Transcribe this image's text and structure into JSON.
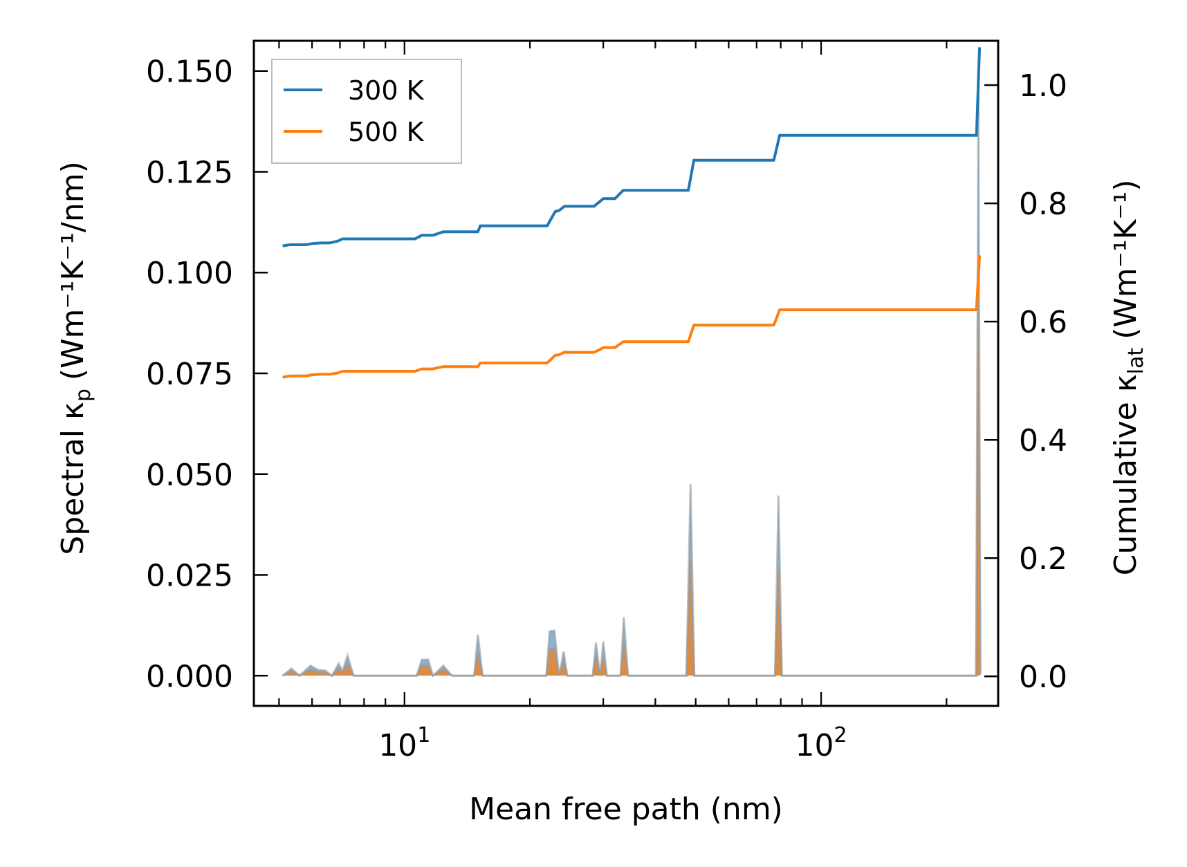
{
  "chart_data": {
    "type": "line",
    "title": "",
    "xlabel": "Mean free path (nm)",
    "ylabel_left": {
      "base": "Spectral κ",
      "sub": "p",
      "unit": "(Wm⁻¹K⁻¹/nm)"
    },
    "ylabel_right": {
      "base": "Cumulative κ",
      "sub": "lat",
      "unit": "(Wm⁻¹K⁻¹)"
    },
    "x_scale": "log",
    "xlim": [
      4.35,
      266
    ],
    "x_ticks": [
      {
        "value": 10,
        "label": "10",
        "exp": "1"
      },
      {
        "value": 100,
        "label": "10",
        "exp": "2"
      }
    ],
    "ylim_left": [
      -0.0075,
      0.1575
    ],
    "ylim_right": [
      -0.05,
      1.075
    ],
    "y_ticks_left": [
      {
        "value": 0.0,
        "label": "0.000"
      },
      {
        "value": 0.025,
        "label": "0.025"
      },
      {
        "value": 0.05,
        "label": "0.050"
      },
      {
        "value": 0.075,
        "label": "0.075"
      },
      {
        "value": 0.1,
        "label": "0.100"
      },
      {
        "value": 0.125,
        "label": "0.125"
      },
      {
        "value": 0.15,
        "label": "0.150"
      }
    ],
    "y_ticks_right": [
      {
        "value": 0.0,
        "label": "0.0"
      },
      {
        "value": 0.2,
        "label": "0.2"
      },
      {
        "value": 0.4,
        "label": "0.4"
      },
      {
        "value": 0.6,
        "label": "0.6"
      },
      {
        "value": 0.8,
        "label": "0.8"
      },
      {
        "value": 1.0,
        "label": "1.0"
      }
    ],
    "legend": {
      "position": "upper-left",
      "entries": [
        {
          "name": "300 K",
          "color": "#1f77b4"
        },
        {
          "name": "500 K",
          "color": "#ff7f0e"
        }
      ]
    },
    "cumulative_series": [
      {
        "name": "300 K",
        "axis": "right",
        "color": "#1f77b4",
        "points": [
          [
            5.1,
            0.728
          ],
          [
            5.3,
            0.73
          ],
          [
            5.8,
            0.73
          ],
          [
            6.0,
            0.732
          ],
          [
            6.3,
            0.733
          ],
          [
            6.6,
            0.733
          ],
          [
            6.9,
            0.736
          ],
          [
            7.1,
            0.74
          ],
          [
            10.6,
            0.74
          ],
          [
            11.0,
            0.746
          ],
          [
            11.7,
            0.746
          ],
          [
            12.4,
            0.752
          ],
          [
            15.0,
            0.752
          ],
          [
            15.2,
            0.762
          ],
          [
            22.0,
            0.762
          ],
          [
            23.0,
            0.786
          ],
          [
            23.5,
            0.788
          ],
          [
            24.2,
            0.795
          ],
          [
            28.5,
            0.795
          ],
          [
            29.3,
            0.802
          ],
          [
            30.0,
            0.808
          ],
          [
            32.0,
            0.808
          ],
          [
            33.5,
            0.822
          ],
          [
            48.0,
            0.822
          ],
          [
            49.5,
            0.873
          ],
          [
            77.0,
            0.873
          ],
          [
            79.5,
            0.915
          ],
          [
            236,
            0.915
          ],
          [
            240,
            1.064
          ]
        ]
      },
      {
        "name": "500 K",
        "axis": "right",
        "color": "#ff7f0e",
        "points": [
          [
            5.1,
            0.506
          ],
          [
            5.3,
            0.508
          ],
          [
            5.8,
            0.508
          ],
          [
            6.0,
            0.51
          ],
          [
            6.3,
            0.511
          ],
          [
            6.6,
            0.511
          ],
          [
            6.9,
            0.513
          ],
          [
            7.1,
            0.516
          ],
          [
            10.6,
            0.516
          ],
          [
            11.0,
            0.52
          ],
          [
            11.7,
            0.52
          ],
          [
            12.4,
            0.524
          ],
          [
            15.0,
            0.524
          ],
          [
            15.2,
            0.53
          ],
          [
            22.0,
            0.53
          ],
          [
            23.0,
            0.543
          ],
          [
            23.5,
            0.544
          ],
          [
            24.2,
            0.548
          ],
          [
            28.5,
            0.548
          ],
          [
            29.3,
            0.552
          ],
          [
            30.0,
            0.556
          ],
          [
            32.0,
            0.556
          ],
          [
            33.5,
            0.566
          ],
          [
            48.0,
            0.566
          ],
          [
            49.5,
            0.594
          ],
          [
            77.0,
            0.594
          ],
          [
            79.5,
            0.62
          ],
          [
            236,
            0.62
          ],
          [
            240,
            0.712
          ]
        ]
      }
    ],
    "spectral_series": [
      {
        "name": "300 K spectral",
        "axis": "left",
        "color": "#1f77b4",
        "points": [
          [
            5.1,
            0
          ],
          [
            5.35,
            0.0018
          ],
          [
            5.6,
            0
          ],
          [
            5.95,
            0.0025
          ],
          [
            6.2,
            0.0014
          ],
          [
            6.45,
            0.0013
          ],
          [
            6.7,
            0
          ],
          [
            6.95,
            0.003
          ],
          [
            7.1,
            0.0012
          ],
          [
            7.3,
            0.005
          ],
          [
            7.55,
            0
          ],
          [
            10.7,
            0
          ],
          [
            11.0,
            0.004
          ],
          [
            11.4,
            0.004
          ],
          [
            11.7,
            0
          ],
          [
            12.4,
            0.0025
          ],
          [
            13.0,
            0
          ],
          [
            14.7,
            0
          ],
          [
            15.0,
            0.0102
          ],
          [
            15.4,
            0
          ],
          [
            21.9,
            0
          ],
          [
            22.3,
            0.011
          ],
          [
            22.9,
            0.0112
          ],
          [
            23.5,
            0
          ],
          [
            24.1,
            0.006
          ],
          [
            24.6,
            0
          ],
          [
            28.3,
            0
          ],
          [
            28.8,
            0.0082
          ],
          [
            29.5,
            0
          ],
          [
            30.0,
            0.0085
          ],
          [
            30.6,
            0
          ],
          [
            33.0,
            0
          ],
          [
            33.6,
            0.0145
          ],
          [
            34.4,
            0
          ],
          [
            47.5,
            0
          ],
          [
            48.6,
            0.0475
          ],
          [
            49.6,
            0
          ],
          [
            77.5,
            0
          ],
          [
            79.0,
            0.0447
          ],
          [
            80.5,
            0
          ],
          [
            235.5,
            0
          ],
          [
            238.5,
            0.15
          ],
          [
            241,
            0.0005
          ]
        ]
      },
      {
        "name": "500 K spectral",
        "axis": "left",
        "color": "#ff7f0e",
        "points": [
          [
            5.1,
            0
          ],
          [
            5.35,
            0.0011
          ],
          [
            5.6,
            0
          ],
          [
            5.95,
            0.0015
          ],
          [
            6.2,
            0.0008
          ],
          [
            6.45,
            0.0008
          ],
          [
            6.7,
            0
          ],
          [
            6.95,
            0.0018
          ],
          [
            7.1,
            0.0007
          ],
          [
            7.3,
            0.003
          ],
          [
            7.55,
            0
          ],
          [
            10.7,
            0
          ],
          [
            11.0,
            0.0025
          ],
          [
            11.4,
            0.0025
          ],
          [
            11.7,
            0
          ],
          [
            12.4,
            0.0015
          ],
          [
            13.0,
            0
          ],
          [
            14.7,
            0
          ],
          [
            15.0,
            0.0055
          ],
          [
            15.4,
            0
          ],
          [
            21.9,
            0
          ],
          [
            22.3,
            0.0065
          ],
          [
            22.9,
            0.0068
          ],
          [
            23.5,
            0
          ],
          [
            24.1,
            0.0035
          ],
          [
            24.6,
            0
          ],
          [
            28.3,
            0
          ],
          [
            28.8,
            0.0048
          ],
          [
            29.5,
            0
          ],
          [
            30.0,
            0.005
          ],
          [
            30.6,
            0
          ],
          [
            33.0,
            0
          ],
          [
            33.6,
            0.0085
          ],
          [
            34.4,
            0
          ],
          [
            47.5,
            0
          ],
          [
            48.6,
            0.0285
          ],
          [
            49.6,
            0
          ],
          [
            77.5,
            0
          ],
          [
            79.0,
            0.0268
          ],
          [
            80.5,
            0
          ],
          [
            235.5,
            0
          ],
          [
            238.5,
            0.09
          ],
          [
            241,
            0.0003
          ]
        ]
      }
    ]
  },
  "colors": {
    "blue": "#1f77b4",
    "orange": "#ff7f0e",
    "spectral_edge": "#999999"
  }
}
